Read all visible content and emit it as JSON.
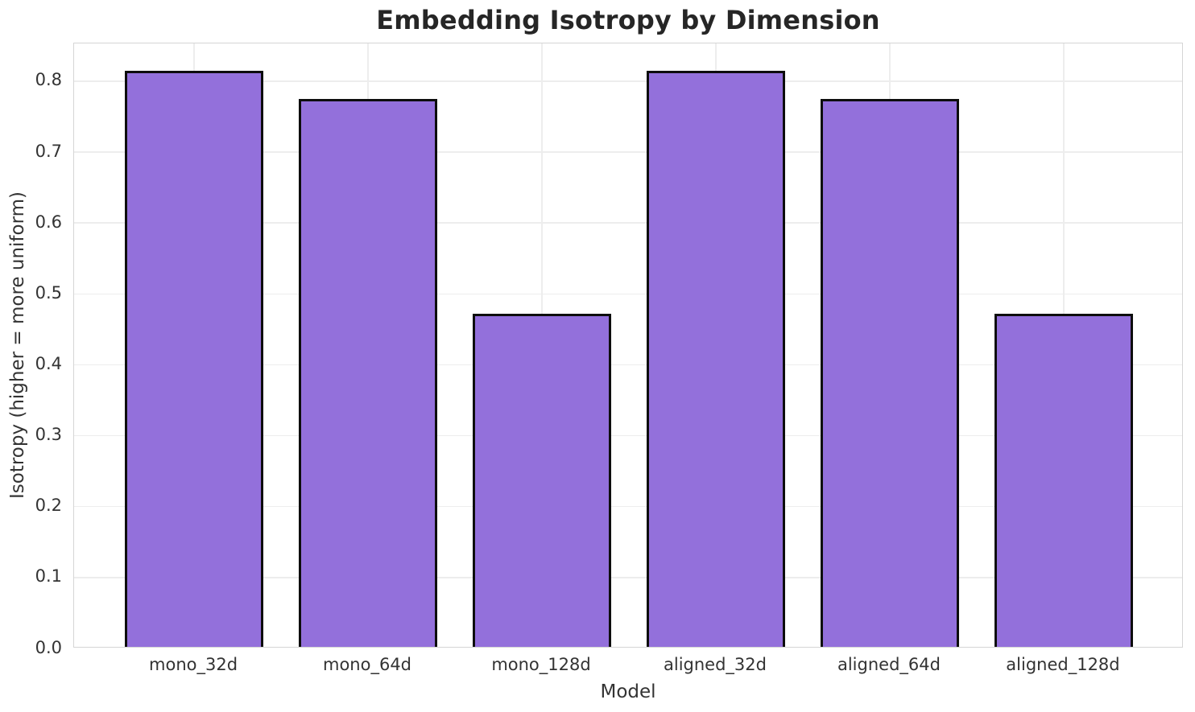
{
  "chart_data": {
    "type": "bar",
    "title": "Embedding Isotropy by Dimension",
    "xlabel": "Model",
    "ylabel": "Isotropy (higher = more uniform)",
    "categories": [
      "mono_32d",
      "mono_64d",
      "mono_128d",
      "aligned_32d",
      "aligned_64d",
      "aligned_128d"
    ],
    "values": [
      0.813,
      0.773,
      0.47,
      0.813,
      0.773,
      0.47
    ],
    "yticks": [
      0.0,
      0.1,
      0.2,
      0.3,
      0.4,
      0.5,
      0.6,
      0.7,
      0.8
    ],
    "ytick_labels": [
      "0.0",
      "0.1",
      "0.2",
      "0.3",
      "0.4",
      "0.5",
      "0.6",
      "0.7",
      "0.8"
    ],
    "ylim": [
      0,
      0.8533
    ],
    "xlim": [
      -0.69,
      5.69
    ],
    "bar_width": 0.8,
    "grid": true,
    "legend": null,
    "bar_color": "#9370DB",
    "bar_edge_color": "#0d0d0d"
  },
  "colors": {
    "background": "#ffffff",
    "grid": "#ededed",
    "spine": "#d5d5d5",
    "tick_text": "#333333",
    "label_text": "#333333",
    "title_text": "#262626"
  }
}
